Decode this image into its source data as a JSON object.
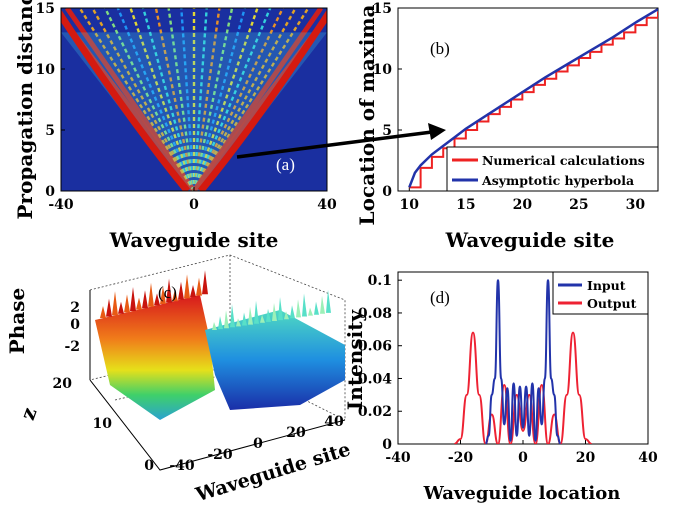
{
  "chart_data": [
    {
      "panel": "(a)",
      "type": "heatmap",
      "xlabel": "Waveguide site",
      "ylabel": "Propagation distance",
      "xlim": [
        -40,
        40
      ],
      "ylim": [
        0,
        15
      ],
      "xticks": [
        "-40",
        "0",
        "40"
      ],
      "yticks": [
        "0",
        "5",
        "10",
        "15"
      ],
      "annotation": "(a)",
      "colormap": "jet"
    },
    {
      "panel": "(b)",
      "type": "line",
      "xlabel": "Waveguide site",
      "ylabel": "Location of maxima",
      "xlim": [
        9,
        32
      ],
      "ylim": [
        0,
        15
      ],
      "xticks": [
        "10",
        "15",
        "20",
        "25",
        "30"
      ],
      "yticks": [
        "0",
        "5",
        "10",
        "15"
      ],
      "legend_position": "bottom-right",
      "annotation": "(b)",
      "series": [
        {
          "name": "Numerical calculations",
          "color": "#ee2222",
          "step": true,
          "x": [
            10,
            11,
            12,
            13,
            14,
            15,
            16,
            17,
            18,
            19,
            20,
            21,
            22,
            23,
            24,
            25,
            26,
            27,
            28,
            29,
            30,
            31,
            32
          ],
          "y": [
            0.3,
            1.9,
            2.8,
            3.5,
            4.3,
            5.0,
            5.7,
            6.3,
            6.9,
            7.5,
            8.1,
            8.7,
            9.2,
            9.8,
            10.3,
            10.9,
            11.4,
            12.0,
            12.5,
            13.0,
            13.6,
            14.2,
            14.7
          ]
        },
        {
          "name": "Asymptotic hyperbola",
          "color": "#2233aa",
          "x": [
            10,
            10.5,
            11,
            12,
            13,
            14,
            15,
            16,
            18,
            20,
            22,
            24,
            26,
            28,
            30,
            32
          ],
          "y": [
            0.3,
            1.5,
            2.1,
            3.0,
            3.7,
            4.4,
            5.1,
            5.7,
            6.9,
            8.1,
            9.3,
            10.4,
            11.5,
            12.6,
            13.8,
            14.9
          ]
        }
      ]
    },
    {
      "panel": "(c)",
      "type": "surface",
      "xlabel": "Waveguide site",
      "ylabel": "z",
      "zlabel": "Phase",
      "xticks": [
        "-40",
        "-20",
        "0",
        "20",
        "40"
      ],
      "yticks": [
        "0",
        "10",
        "20"
      ],
      "zticks": [
        "2",
        "0",
        "-2"
      ],
      "annotation": "(c)"
    },
    {
      "panel": "(d)",
      "type": "line",
      "xlabel": "Waveguide location",
      "ylabel": "Intensity",
      "xlim": [
        -40,
        40
      ],
      "ylim": [
        0,
        0.105
      ],
      "xticks": [
        "-40",
        "-20",
        "0",
        "20",
        "40"
      ],
      "yticks": [
        "0",
        "0.02",
        "0.04",
        "0.06",
        "0.08",
        "0.1"
      ],
      "legend_position": "top-right",
      "annotation": "(d)",
      "series": [
        {
          "name": "Input",
          "color": "#2233aa",
          "x": [
            -12,
            -11,
            -10,
            -9,
            -8,
            -7,
            -6,
            -5,
            -4,
            -3,
            -2,
            -1,
            0,
            1,
            2,
            3,
            4,
            5,
            6,
            7,
            8,
            9,
            10,
            11,
            12
          ],
          "y": [
            0,
            0.005,
            0.03,
            0.04,
            0.1,
            0.04,
            0.012,
            0.034,
            0.002,
            0.037,
            0.005,
            0.035,
            0.01,
            0.035,
            0.005,
            0.037,
            0.002,
            0.034,
            0.012,
            0.04,
            0.1,
            0.04,
            0.03,
            0.005,
            0
          ]
        },
        {
          "name": "Output",
          "color": "#ee2233",
          "x": [
            -22,
            -20,
            -18,
            -16,
            -14,
            -12,
            -10,
            -8,
            -6,
            -4,
            -2,
            0,
            2,
            4,
            6,
            8,
            10,
            12,
            14,
            16,
            18,
            20,
            22
          ],
          "y": [
            0,
            0.003,
            0.03,
            0.068,
            0.03,
            0.0,
            0.018,
            0.0,
            0.036,
            0.0,
            0.03,
            0.008,
            0.03,
            0.0,
            0.036,
            0.0,
            0.018,
            0.0,
            0.03,
            0.068,
            0.03,
            0.003,
            0
          ]
        }
      ]
    }
  ]
}
